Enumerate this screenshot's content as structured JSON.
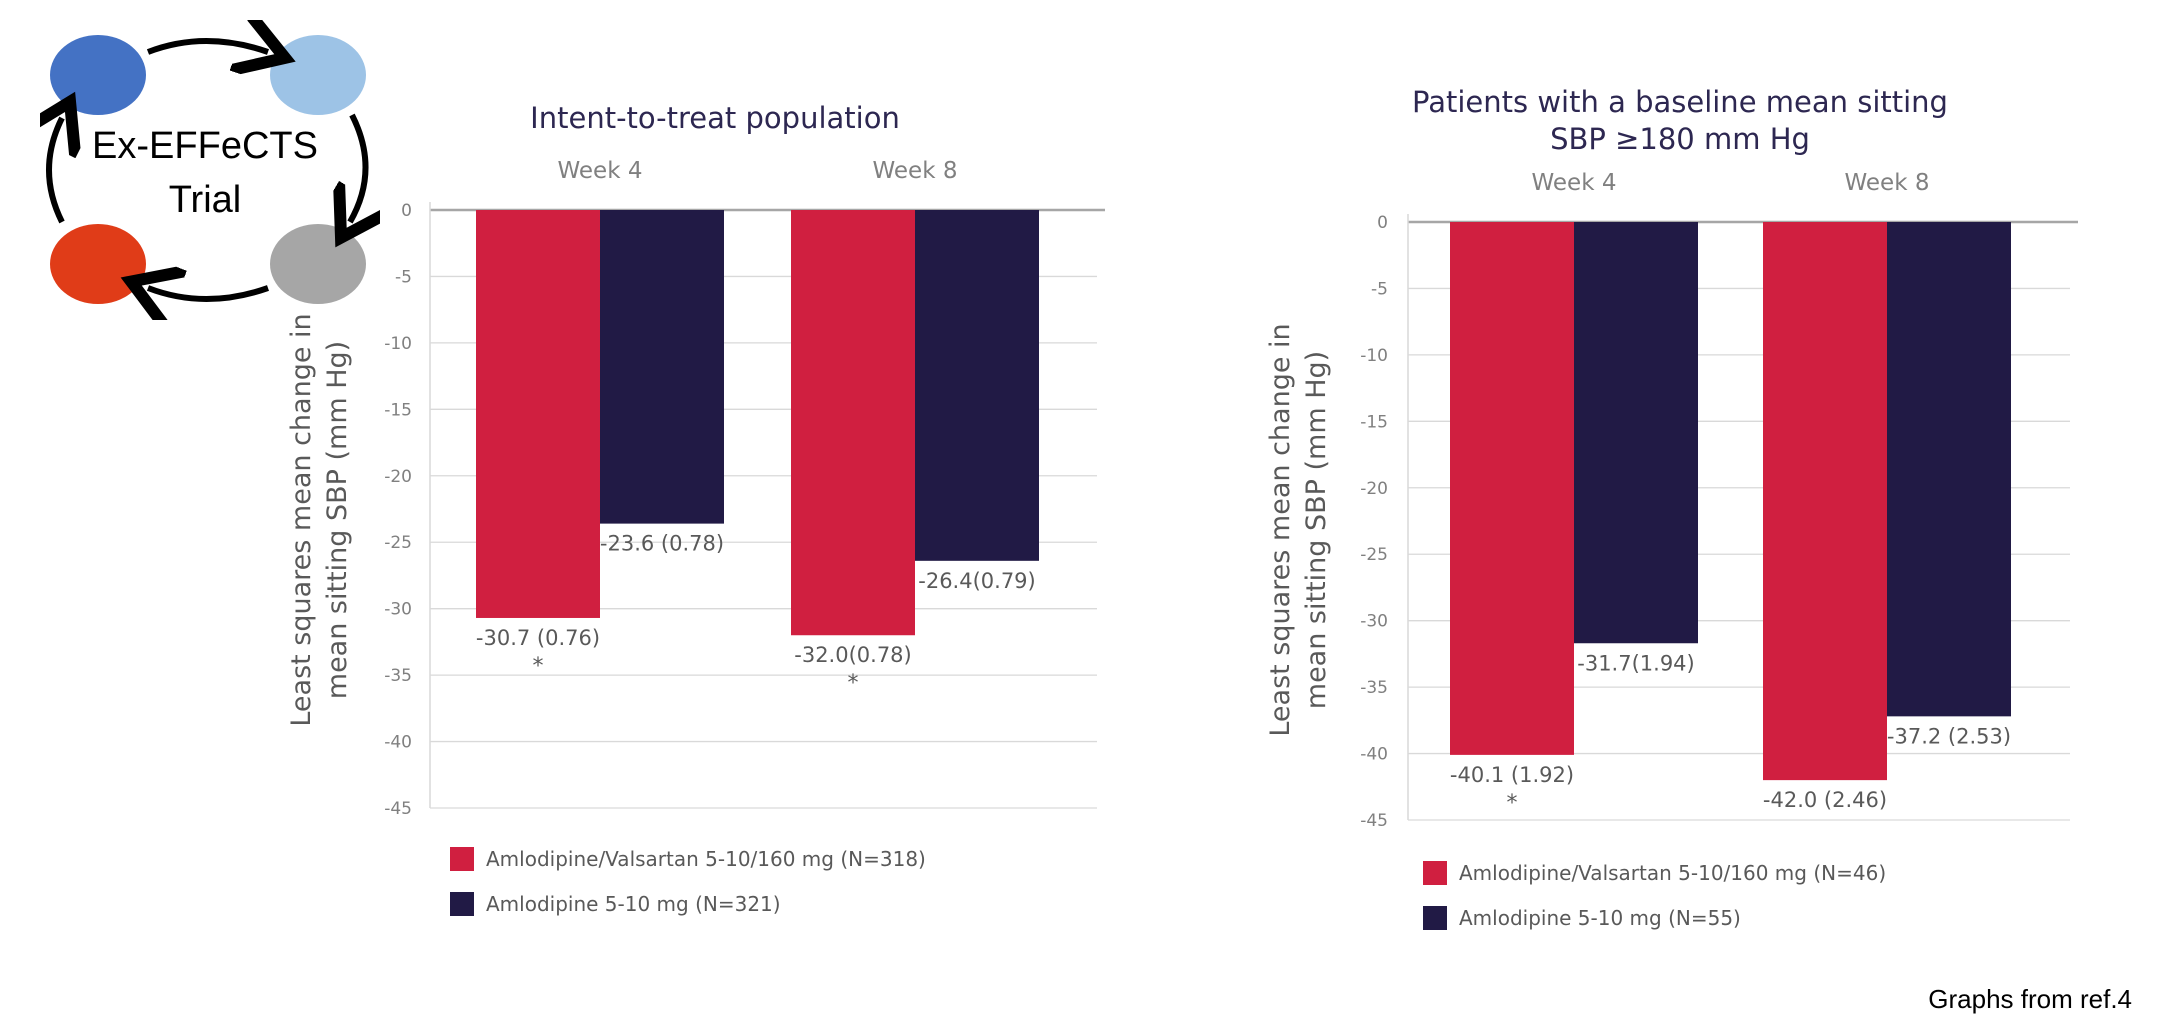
{
  "logo": {
    "line1": "Ex-EFFeCTS",
    "line2": "Trial",
    "colors": [
      "#4472c4",
      "#9dc3e6",
      "#a6a6a6",
      "#e03c18"
    ]
  },
  "colors": {
    "combo": "#d01f40",
    "mono": "#211a45",
    "axis_text": "#808080",
    "label_text": "#595959",
    "title_text": "#2d2751"
  },
  "chart_data": [
    {
      "type": "bar",
      "title": "Intent-to-treat population",
      "categories": [
        "Week 4",
        "Week 8"
      ],
      "ylabel": "Least squares mean change in mean sitting SBP (mm Hg)",
      "ylabel_lines": [
        "Least squares mean change in",
        "mean sitting SBP (mm Hg)"
      ],
      "ylim": [
        -45,
        0
      ],
      "yticks": [
        0,
        -5,
        -10,
        -15,
        -20,
        -25,
        -30,
        -35,
        -40,
        -45
      ],
      "grid": true,
      "legend_position": "bottom-left",
      "series": [
        {
          "name": "Amlodipine/Valsartan 5-10/160 mg (N=318)",
          "values": [
            -30.7,
            -32.0
          ],
          "labels": [
            "-30.7 (0.76)",
            "-32.0(0.78)"
          ],
          "asterisk": [
            "*",
            "*"
          ]
        },
        {
          "name": "Amlodipine 5-10 mg (N=321)",
          "values": [
            -23.6,
            -26.4
          ],
          "labels": [
            "-23.6 (0.78)",
            "-26.4(0.79)"
          ],
          "asterisk": [
            "",
            ""
          ]
        }
      ]
    },
    {
      "type": "bar",
      "title": "Patients with a baseline mean sitting SBP ≥180 mm Hg",
      "title_lines": [
        "Patients with a baseline mean sitting",
        "SBP ≥180 mm Hg"
      ],
      "categories": [
        "Week 4",
        "Week 8"
      ],
      "ylabel": "Least squares mean change in mean sitting SBP (mm Hg)",
      "ylabel_lines": [
        "Least squares mean change in",
        "mean sitting SBP (mm Hg)"
      ],
      "ylim": [
        -45,
        0
      ],
      "yticks": [
        0,
        -5,
        -10,
        -15,
        -20,
        -25,
        -30,
        -35,
        -40,
        -45
      ],
      "grid": true,
      "legend_position": "bottom-left",
      "series": [
        {
          "name": "Amlodipine/Valsartan 5-10/160 mg (N=46)",
          "values": [
            -40.1,
            -42.0
          ],
          "labels": [
            "-40.1 (1.92)",
            "-42.0 (2.46)"
          ],
          "asterisk": [
            "*",
            ""
          ]
        },
        {
          "name": "Amlodipine 5-10 mg (N=55)",
          "values": [
            -31.7,
            -37.2
          ],
          "labels": [
            "-31.7(1.94)",
            "-37.2 (2.53)"
          ],
          "asterisk": [
            "",
            ""
          ]
        }
      ]
    }
  ],
  "footnote": "Graphs from ref.4"
}
